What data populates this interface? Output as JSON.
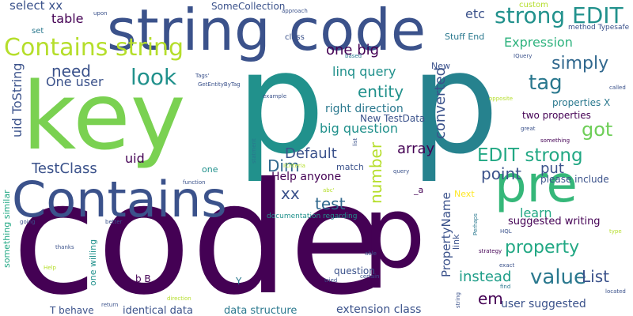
{
  "word_cloud": {
    "words": [
      {
        "text": "code",
        "color": "#440154"
      },
      {
        "text": "p",
        "color": "#21918c"
      },
      {
        "text": "p",
        "color": "#26828e"
      },
      {
        "text": "key",
        "color": "#7ad151"
      },
      {
        "text": "string code",
        "color": "#3b528b"
      },
      {
        "text": "Contains",
        "color": "#3b528b"
      },
      {
        "text": "pre",
        "color": "#35b779"
      },
      {
        "text": "p",
        "color": "#440154"
      },
      {
        "text": "Contains string",
        "color": "#b5de2b"
      },
      {
        "text": "strong EDIT",
        "color": "#21918c"
      },
      {
        "text": "EDIT strong",
        "color": "#22a884"
      },
      {
        "text": "look",
        "color": "#21918c"
      },
      {
        "text": "tag",
        "color": "#2a788e"
      },
      {
        "text": "value",
        "color": "#2a788e"
      },
      {
        "text": "got",
        "color": "#6ece58"
      },
      {
        "text": "simply",
        "color": "#31688e"
      },
      {
        "text": "property",
        "color": "#22a884"
      },
      {
        "text": "need",
        "color": "#3b528b"
      },
      {
        "text": "entity",
        "color": "#21918c"
      },
      {
        "text": "xx",
        "color": "#3b528b"
      },
      {
        "text": "test",
        "color": "#31688e"
      },
      {
        "text": "Dim",
        "color": "#31688e"
      },
      {
        "text": "point",
        "color": "#3b528b"
      },
      {
        "text": "List",
        "color": "#3b528b"
      },
      {
        "text": "em",
        "color": "#440154"
      },
      {
        "text": "instead",
        "color": "#1f9e89"
      },
      {
        "text": "array",
        "color": "#440154"
      },
      {
        "text": "number",
        "color": "#b5de2b"
      },
      {
        "text": "converted",
        "color": "#3b528b"
      },
      {
        "text": "one big",
        "color": "#440154"
      },
      {
        "text": "linq query",
        "color": "#21918c"
      },
      {
        "text": "TestClass",
        "color": "#3b528b"
      },
      {
        "text": "Default",
        "color": "#3b528b"
      },
      {
        "text": "put",
        "color": "#3b528b"
      },
      {
        "text": "learn",
        "color": "#22a884"
      },
      {
        "text": "big question",
        "color": "#21918c"
      },
      {
        "text": "Expression",
        "color": "#2db27d"
      },
      {
        "text": "etc",
        "color": "#3b528b"
      },
      {
        "text": "table",
        "color": "#440154"
      },
      {
        "text": "select xx",
        "color": "#3b528b"
      },
      {
        "text": "One user",
        "color": "#3b528b"
      },
      {
        "text": "uid ToString",
        "color": "#3b528b"
      },
      {
        "text": "uid",
        "color": "#440154"
      },
      {
        "text": "Help anyone",
        "color": "#440154"
      },
      {
        "text": "right direction",
        "color": "#2a788e"
      },
      {
        "text": "suggested writing",
        "color": "#440154"
      },
      {
        "text": "user suggested",
        "color": "#3b528b"
      },
      {
        "text": "PropertyName",
        "color": "#3b528b"
      },
      {
        "text": "SomeCollection",
        "color": "#3b528b"
      },
      {
        "text": "New TestData",
        "color": "#3b528b"
      },
      {
        "text": "two properties",
        "color": "#440154"
      },
      {
        "text": "properties X",
        "color": "#2a788e"
      },
      {
        "text": "please include",
        "color": "#3b528b"
      },
      {
        "text": "extension class",
        "color": "#3b528b"
      },
      {
        "text": "identical data",
        "color": "#3b528b"
      },
      {
        "text": "data structure",
        "color": "#2a788e"
      },
      {
        "text": "something similar",
        "color": "#22a884"
      },
      {
        "text": "one willing",
        "color": "#21918c"
      },
      {
        "text": "T behave",
        "color": "#3b528b"
      },
      {
        "text": "documentation regarding",
        "color": "#21918c"
      },
      {
        "text": "Stuff End",
        "color": "#2a788e"
      },
      {
        "text": "method Typesafe",
        "color": "#3b528b"
      },
      {
        "text": "custom",
        "color": "#b5de2b"
      },
      {
        "text": "question",
        "color": "#3b528b"
      },
      {
        "text": "link",
        "color": "#3b528b"
      },
      {
        "text": "Next",
        "color": "#fde725"
      },
      {
        "text": "match",
        "color": "#3b528b"
      },
      {
        "text": "_b B",
        "color": "#440154"
      },
      {
        "text": "Y",
        "color": "#2a788e"
      },
      {
        "text": "_a",
        "color": "#440154"
      },
      {
        "text": "class",
        "color": "#3b528b"
      },
      {
        "text": "New",
        "color": "#3b528b"
      },
      {
        "text": "set",
        "color": "#2a788e"
      },
      {
        "text": "one",
        "color": "#21918c"
      },
      {
        "text": "upon",
        "color": "#3b528b"
      },
      {
        "text": "approach",
        "color": "#3b528b"
      },
      {
        "text": "based",
        "color": "#2a788e"
      },
      {
        "text": "IQuery",
        "color": "#3b528b"
      },
      {
        "text": "Tags'",
        "color": "#3b528b"
      },
      {
        "text": "GetEntityByTag",
        "color": "#3b528b"
      },
      {
        "text": "called",
        "color": "#3b528b"
      },
      {
        "text": "example",
        "color": "#3b528b"
      },
      {
        "text": "opposite",
        "color": "#b5de2b"
      },
      {
        "text": "great",
        "color": "#3b528b"
      },
      {
        "text": "something",
        "color": "#440154"
      },
      {
        "text": "statment",
        "color": "#2a788e"
      },
      {
        "text": "list",
        "color": "#3b528b"
      },
      {
        "text": "ICriteria",
        "color": "#b5de2b"
      },
      {
        "text": "function",
        "color": "#3b528b"
      },
      {
        "text": "abc'",
        "color": "#b5de2b"
      },
      {
        "text": "query",
        "color": "#3b528b"
      },
      {
        "text": "going",
        "color": "#3b528b"
      },
      {
        "text": "better",
        "color": "#3b528b"
      },
      {
        "text": "Perhaps",
        "color": "#2a788e"
      },
      {
        "text": "HQL",
        "color": "#3b528b"
      },
      {
        "text": "type",
        "color": "#b5de2b"
      },
      {
        "text": "thanks",
        "color": "#3b528b"
      },
      {
        "text": "Help",
        "color": "#b5de2b"
      },
      {
        "text": "strategy",
        "color": "#440154"
      },
      {
        "text": "able",
        "color": "#3b528b"
      },
      {
        "text": "exact",
        "color": "#3b528b"
      },
      {
        "text": "certain",
        "color": "#3b528b"
      },
      {
        "text": "tried",
        "color": "#3b528b"
      },
      {
        "text": "find",
        "color": "#2a788e"
      },
      {
        "text": "located",
        "color": "#3b528b"
      },
      {
        "text": "direction",
        "color": "#b5de2b"
      },
      {
        "text": "return",
        "color": "#3b528b"
      },
      {
        "text": "string",
        "color": "#3b528b"
      }
    ]
  }
}
